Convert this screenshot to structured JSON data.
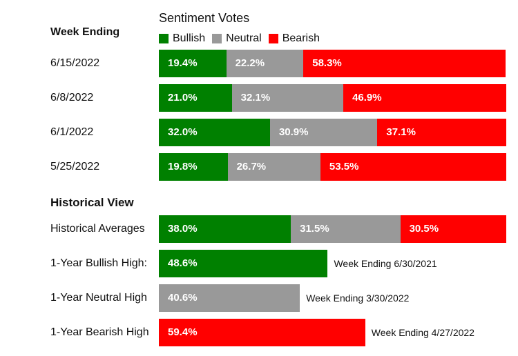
{
  "colors": {
    "bullish": "#008000",
    "neutral": "#999999",
    "bearish": "#ff0000"
  },
  "legend": {
    "title": "Sentiment Votes",
    "items": [
      {
        "key": "bullish",
        "label": "Bullish"
      },
      {
        "key": "neutral",
        "label": "Neutral"
      },
      {
        "key": "bearish",
        "label": "Bearish"
      }
    ]
  },
  "weekly_header": "Week Ending",
  "historical_header": "Historical View",
  "chart_data": {
    "type": "bar",
    "stacked": true,
    "orientation": "horizontal",
    "weekly": [
      {
        "label": "6/15/2022",
        "bullish": 19.4,
        "neutral": 22.2,
        "bearish": 58.3,
        "bullish_text": "19.4%",
        "neutral_text": "22.2%",
        "bearish_text": "58.3%"
      },
      {
        "label": "6/8/2022",
        "bullish": 21.0,
        "neutral": 32.1,
        "bearish": 46.9,
        "bullish_text": "21.0%",
        "neutral_text": "32.1%",
        "bearish_text": "46.9%"
      },
      {
        "label": "6/1/2022",
        "bullish": 32.0,
        "neutral": 30.9,
        "bearish": 37.1,
        "bullish_text": "32.0%",
        "neutral_text": "30.9%",
        "bearish_text": "37.1%"
      },
      {
        "label": "5/25/2022",
        "bullish": 19.8,
        "neutral": 26.7,
        "bearish": 53.5,
        "bullish_text": "19.8%",
        "neutral_text": "26.7%",
        "bearish_text": "53.5%"
      }
    ],
    "historical_averages": {
      "label": "Historical Averages",
      "bullish": 38.0,
      "neutral": 31.5,
      "bearish": 30.5,
      "bullish_text": "38.0%",
      "neutral_text": "31.5%",
      "bearish_text": "30.5%"
    },
    "highs": [
      {
        "label": "1-Year Bullish High:",
        "series": "bullish",
        "value": 48.6,
        "value_text": "48.6%",
        "note": "Week Ending 6/30/2021"
      },
      {
        "label": "1-Year Neutral High",
        "series": "neutral",
        "value": 40.6,
        "value_text": "40.6%",
        "note": "Week Ending 3/30/2022"
      },
      {
        "label": "1-Year Bearish High",
        "series": "bearish",
        "value": 59.4,
        "value_text": "59.4%",
        "note": "Week Ending 4/27/2022"
      }
    ]
  }
}
